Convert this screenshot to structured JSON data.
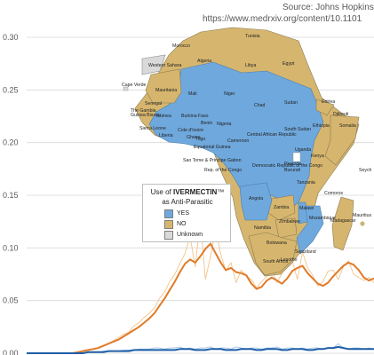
{
  "source": {
    "line1": "Source: Johns Hopkins",
    "line2": "https://www.medrxiv.org/content/10.1101"
  },
  "legend": {
    "title_prefix": "Use of ",
    "title_bold": "IVERMECTIN",
    "title_mark": "™",
    "title_suffix": "as Anti-Parasitic",
    "items": [
      {
        "label": "YES",
        "color": "#6fa8dc"
      },
      {
        "label": "NO",
        "color": "#d6b66e"
      },
      {
        "label": "Unknown",
        "color": "#d9d9d9"
      }
    ]
  },
  "map_labels": [
    {
      "id": "tunisia",
      "text": "Tunisia"
    },
    {
      "id": "morocco",
      "text": "Morocco"
    },
    {
      "id": "algeria",
      "text": "Algeria"
    },
    {
      "id": "libya",
      "text": "Libya"
    },
    {
      "id": "egypt",
      "text": "Egypt"
    },
    {
      "id": "western-sahara",
      "text": "Western Sahara"
    },
    {
      "id": "cape-verde",
      "text": "Cape Verde"
    },
    {
      "id": "mauritania",
      "text": "Mauritania"
    },
    {
      "id": "mali",
      "text": "Mali"
    },
    {
      "id": "niger",
      "text": "Niger"
    },
    {
      "id": "chad",
      "text": "Chad"
    },
    {
      "id": "sudan",
      "text": "Sudan"
    },
    {
      "id": "eritrea",
      "text": "Eritrea"
    },
    {
      "id": "senegal",
      "text": "Senegal"
    },
    {
      "id": "gambia",
      "text": "The Gambia"
    },
    {
      "id": "guinea-bissau",
      "text": "Guinea Bissau"
    },
    {
      "id": "guinea",
      "text": "Guinea"
    },
    {
      "id": "burkina-faso",
      "text": "Burkina Faso"
    },
    {
      "id": "djibouti",
      "text": "Djibouti"
    },
    {
      "id": "sierra-leone",
      "text": "Sierra Leone"
    },
    {
      "id": "benin",
      "text": "Benin"
    },
    {
      "id": "nigeria",
      "text": "Nigeria"
    },
    {
      "id": "south-sudan",
      "text": "South Sudan"
    },
    {
      "id": "ethiopia",
      "text": "Ethiopia"
    },
    {
      "id": "somalia",
      "text": "Somalia"
    },
    {
      "id": "cote-divoire",
      "text": "Cote d'Ivoire"
    },
    {
      "id": "liberia",
      "text": "Liberia"
    },
    {
      "id": "ghana",
      "text": "Ghana"
    },
    {
      "id": "togo",
      "text": "Togo"
    },
    {
      "id": "car",
      "text": "Central African Republic"
    },
    {
      "id": "cameroon",
      "text": "Cameroon"
    },
    {
      "id": "eq-guinea",
      "text": "Equatorial Guinea"
    },
    {
      "id": "uganda",
      "text": "Uganda"
    },
    {
      "id": "kenya",
      "text": "Kenya"
    },
    {
      "id": "sao-tome",
      "text": "Sao Tome & Principe"
    },
    {
      "id": "gabon",
      "text": "Gabon"
    },
    {
      "id": "rep-congo",
      "text": "Rep. of the Congo"
    },
    {
      "id": "drc",
      "text": "Democratic Republic of the Congo"
    },
    {
      "id": "rwanda",
      "text": "Rwanda"
    },
    {
      "id": "burundi",
      "text": "Burundi"
    },
    {
      "id": "seychelles",
      "text": "Seych"
    },
    {
      "id": "tanzania",
      "text": "Tanzania"
    },
    {
      "id": "comoros",
      "text": "Comoros"
    },
    {
      "id": "angola",
      "text": "Angola"
    },
    {
      "id": "malawi",
      "text": "Malawi"
    },
    {
      "id": "zambia",
      "text": "Zambia"
    },
    {
      "id": "mozambique",
      "text": "Mozambique"
    },
    {
      "id": "zimbabwe",
      "text": "Zimbabwe"
    },
    {
      "id": "madagascar",
      "text": "Madagascar"
    },
    {
      "id": "mauritius",
      "text": "Mauritius"
    },
    {
      "id": "namibia",
      "text": "Namibia"
    },
    {
      "id": "botswana",
      "text": "Botswana"
    },
    {
      "id": "swaziland",
      "text": "Swaziland"
    },
    {
      "id": "south-africa",
      "text": "South Africa"
    },
    {
      "id": "lesotho",
      "text": "Lesotho"
    }
  ],
  "chart_data": {
    "type": "line",
    "title": "",
    "xlabel": "",
    "ylabel": "",
    "ylim": [
      0,
      0.3
    ],
    "yticks": [
      "0.00",
      "0.05",
      "0.10",
      "0.15",
      "0.20",
      "0.25",
      "0.30"
    ],
    "grid": true,
    "colors": {
      "orange": "#e07b2a",
      "light_orange": "#f3c487",
      "blue": "#1f5fa8",
      "light_blue": "#9cc3e6",
      "grid": "#d9d9d9"
    },
    "series": [
      {
        "role": "noisy_band",
        "color": "#f3c487",
        "values": [
          0.0,
          0.0,
          0.0,
          0.0,
          0.0,
          0.0,
          0.0,
          0.0,
          0.0,
          0.0,
          0.001,
          0.002,
          0.003,
          0.004,
          0.005,
          0.007,
          0.009,
          0.012,
          0.015,
          0.018,
          0.02,
          0.026,
          0.029,
          0.034,
          0.038,
          0.043,
          0.052,
          0.058,
          0.068,
          0.075,
          0.085,
          0.095,
          0.111,
          0.082,
          0.128,
          0.07,
          0.092,
          0.118,
          0.094,
          0.078,
          0.086,
          0.067,
          0.079,
          0.073,
          0.07,
          0.062,
          0.068,
          0.073,
          0.08,
          0.067,
          0.076,
          0.092,
          0.088,
          0.07,
          0.096,
          0.081,
          0.074,
          0.064,
          0.068,
          0.078,
          0.079,
          0.07,
          0.082,
          0.088,
          0.075,
          0.072,
          0.069,
          0.072,
          0.067
        ]
      },
      {
        "role": "smoothed",
        "color": "#e07b2a",
        "values": [
          0.0,
          0.0,
          0.0,
          0.0,
          0.0,
          0.0,
          0.0,
          0.0,
          0.0,
          0.0,
          0.001,
          0.002,
          0.003,
          0.004,
          0.005,
          0.007,
          0.009,
          0.011,
          0.013,
          0.016,
          0.019,
          0.022,
          0.025,
          0.029,
          0.033,
          0.038,
          0.045,
          0.052,
          0.06,
          0.068,
          0.077,
          0.085,
          0.089,
          0.086,
          0.092,
          0.099,
          0.104,
          0.095,
          0.086,
          0.079,
          0.081,
          0.077,
          0.076,
          0.074,
          0.066,
          0.061,
          0.063,
          0.069,
          0.072,
          0.069,
          0.066,
          0.071,
          0.078,
          0.081,
          0.083,
          0.076,
          0.071,
          0.066,
          0.064,
          0.067,
          0.073,
          0.078,
          0.083,
          0.086,
          0.084,
          0.079,
          0.072,
          0.069,
          0.071
        ]
      },
      {
        "role": "blue_band",
        "color": "#9cc3e6",
        "values": [
          0.0,
          0.0,
          0.0,
          0.0,
          0.0,
          0.0,
          0.0,
          0.0,
          0.0,
          0.0,
          0.0,
          0.0,
          0.001,
          0.001,
          0.001,
          0.002,
          0.002,
          0.002,
          0.002,
          0.003,
          0.003,
          0.003,
          0.004,
          0.004,
          0.004,
          0.005,
          0.005,
          0.004,
          0.005,
          0.005,
          0.006,
          0.004,
          0.005,
          0.004,
          0.005,
          0.005,
          0.006,
          0.004,
          0.005,
          0.005,
          0.004,
          0.006,
          0.005,
          0.004,
          0.005,
          0.005,
          0.004,
          0.005,
          0.005,
          0.006,
          0.004,
          0.005,
          0.005,
          0.004,
          0.005,
          0.004,
          0.005,
          0.005,
          0.004,
          0.005,
          0.005,
          0.009,
          0.005,
          0.004,
          0.005,
          0.005,
          0.004,
          0.005,
          0.004
        ]
      },
      {
        "role": "blue_line",
        "color": "#1f5fa8",
        "values": [
          0.0,
          0.0,
          0.0,
          0.0,
          0.0,
          0.0,
          0.0,
          0.0,
          0.0,
          0.0,
          0.0,
          0.0,
          0.001,
          0.001,
          0.001,
          0.001,
          0.002,
          0.002,
          0.002,
          0.002,
          0.002,
          0.003,
          0.003,
          0.003,
          0.003,
          0.003,
          0.003,
          0.003,
          0.003,
          0.003,
          0.004,
          0.004,
          0.004,
          0.003,
          0.003,
          0.003,
          0.004,
          0.004,
          0.004,
          0.003,
          0.003,
          0.003,
          0.004,
          0.004,
          0.004,
          0.003,
          0.003,
          0.004,
          0.004,
          0.004,
          0.003,
          0.003,
          0.004,
          0.004,
          0.004,
          0.003,
          0.003,
          0.004,
          0.004,
          0.005,
          0.005,
          0.006,
          0.005,
          0.004,
          0.004,
          0.004,
          0.004,
          0.004,
          0.004
        ]
      }
    ]
  }
}
